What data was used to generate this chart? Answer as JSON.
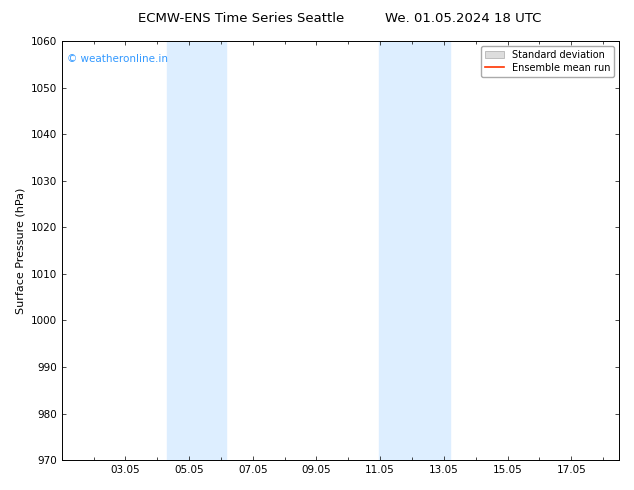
{
  "title_left": "ECMW-ENS Time Series Seattle",
  "title_right": "We. 01.05.2024 18 UTC",
  "ylabel": "Surface Pressure (hPa)",
  "ylim": [
    970,
    1060
  ],
  "yticks": [
    970,
    980,
    990,
    1000,
    1010,
    1020,
    1030,
    1040,
    1050,
    1060
  ],
  "xtick_positions": [
    3,
    5,
    7,
    9,
    11,
    13,
    15,
    17
  ],
  "xtick_labels": [
    "03.05",
    "05.05",
    "07.05",
    "09.05",
    "11.05",
    "13.05",
    "15.05",
    "17.05"
  ],
  "xlim": [
    1.0,
    18.5
  ],
  "shaded_regions": [
    {
      "x_start": 4.3,
      "x_end": 4.85,
      "color": "#ddeeff"
    },
    {
      "x_start": 4.85,
      "x_end": 6.15,
      "color": "#ddeeff"
    },
    {
      "x_start": 10.95,
      "x_end": 11.5,
      "color": "#ddeeff"
    },
    {
      "x_start": 11.5,
      "x_end": 12.15,
      "color": "#ddeeff"
    },
    {
      "x_start": 12.15,
      "x_end": 13.2,
      "color": "#ddeeff"
    }
  ],
  "watermark_text": "© weatheronline.in",
  "watermark_color": "#3399ff",
  "legend_std_label": "Standard deviation",
  "legend_mean_label": "Ensemble mean run",
  "legend_std_color": "#dddddd",
  "legend_mean_color": "#ff3300",
  "background_color": "#ffffff",
  "plot_bg_color": "#ffffff",
  "title_fontsize": 9.5,
  "axis_label_fontsize": 8,
  "tick_fontsize": 7.5,
  "watermark_fontsize": 7.5,
  "legend_fontsize": 7
}
